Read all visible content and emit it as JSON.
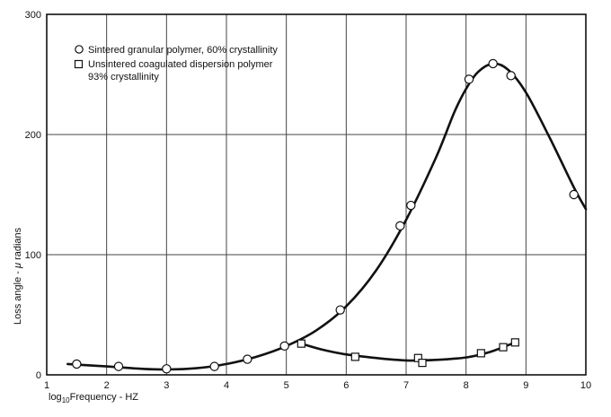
{
  "chart_data": {
    "type": "scatter",
    "title": "",
    "xlabel_prefix": "log",
    "xlabel_sub": "10",
    "xlabel_rest": "Frequency - HZ",
    "ylabel_prefix": "Loss angle - ",
    "ylabel_mu": "μ",
    "ylabel_rest": " radians",
    "xlim": [
      1,
      10
    ],
    "ylim": [
      0,
      300
    ],
    "x_ticks": [
      1,
      2,
      3,
      4,
      5,
      6,
      7,
      8,
      9,
      10
    ],
    "y_ticks": [
      0,
      100,
      200,
      300
    ],
    "grid": true,
    "legend_position": "top-left",
    "series": [
      {
        "name": "Sintered granular polymer, 60% crystallinity",
        "marker": "circle",
        "points": [
          [
            1.5,
            9
          ],
          [
            2.2,
            7
          ],
          [
            3.0,
            5
          ],
          [
            3.8,
            7
          ],
          [
            4.35,
            13
          ],
          [
            4.97,
            24
          ],
          [
            5.9,
            54
          ],
          [
            6.9,
            124
          ],
          [
            7.08,
            141
          ],
          [
            8.05,
            246
          ],
          [
            8.45,
            259
          ],
          [
            8.75,
            249
          ],
          [
            9.8,
            150
          ]
        ],
        "curve": [
          [
            1.35,
            9
          ],
          [
            2.0,
            7
          ],
          [
            2.6,
            5
          ],
          [
            3.0,
            4.5
          ],
          [
            3.5,
            5.5
          ],
          [
            4.0,
            9
          ],
          [
            4.5,
            15
          ],
          [
            5.0,
            24
          ],
          [
            5.5,
            37
          ],
          [
            6.0,
            57
          ],
          [
            6.5,
            87
          ],
          [
            7.0,
            129
          ],
          [
            7.5,
            181
          ],
          [
            7.8,
            218
          ],
          [
            8.0,
            238
          ],
          [
            8.2,
            252
          ],
          [
            8.45,
            259
          ],
          [
            8.7,
            254
          ],
          [
            9.0,
            235
          ],
          [
            9.4,
            197
          ],
          [
            9.8,
            156
          ],
          [
            10.0,
            138
          ]
        ]
      },
      {
        "name": "Unsintered coagulated dispersion polymer",
        "name_line2": "93% crystallinity",
        "marker": "square",
        "points": [
          [
            5.25,
            26
          ],
          [
            6.15,
            15
          ],
          [
            7.2,
            14
          ],
          [
            7.27,
            10
          ],
          [
            8.25,
            18
          ],
          [
            8.62,
            23
          ],
          [
            8.82,
            27
          ]
        ],
        "curve": [
          [
            5.25,
            26
          ],
          [
            5.6,
            21
          ],
          [
            6.0,
            17
          ],
          [
            6.5,
            14
          ],
          [
            7.0,
            12
          ],
          [
            7.5,
            12.5
          ],
          [
            8.0,
            14.5
          ],
          [
            8.4,
            19
          ],
          [
            8.82,
            27
          ]
        ]
      }
    ]
  }
}
